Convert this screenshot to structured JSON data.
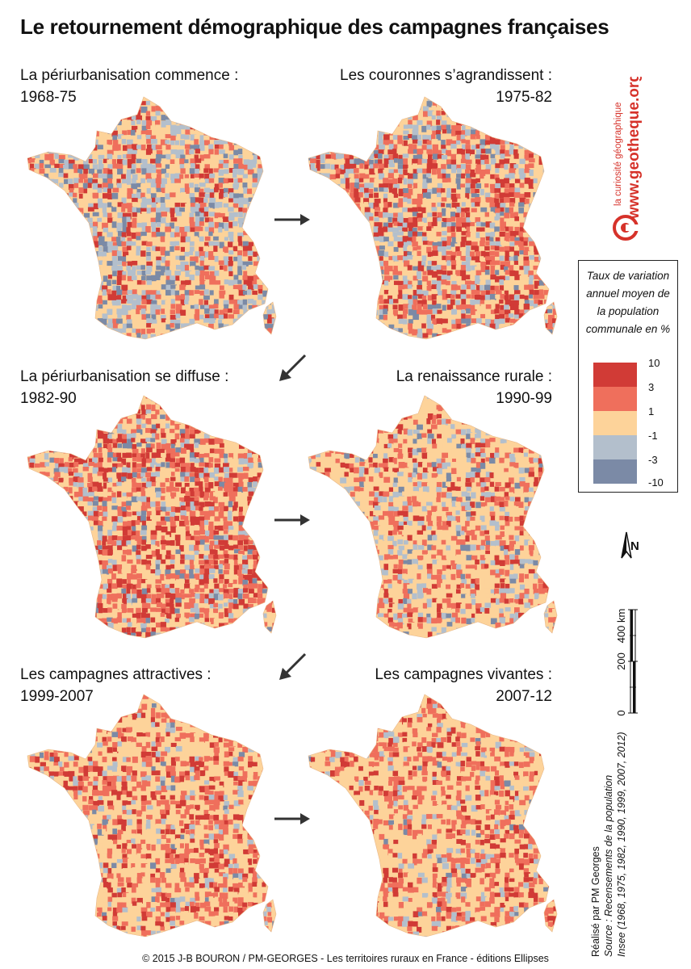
{
  "title": "Le retournement démographique des campagnes françaises",
  "panels": [
    {
      "label": "La périurbanisation commence :",
      "period": "1968-75",
      "palette": "p1"
    },
    {
      "label": "Les couronnes s’agrandissent :",
      "period": "1975-82",
      "palette": "p2"
    },
    {
      "label": "La périurbanisation se diffuse :",
      "period": "1982-90",
      "palette": "p3"
    },
    {
      "label": "La renaissance rurale :",
      "period": "1990-99",
      "palette": "p4"
    },
    {
      "label": "Les campagnes attractives :",
      "period": "1999-2007",
      "palette": "p5"
    },
    {
      "label": "Les campagnes vivantes :",
      "period": "2007-12",
      "palette": "p6"
    }
  ],
  "legend": {
    "title_lines": [
      "Taux de variation",
      "annuel moyen de",
      "la population",
      "communale en %"
    ],
    "breaks": [
      "10",
      "3",
      "1",
      "-1",
      "-3",
      "-10"
    ],
    "colors": [
      "#d13b36",
      "#ef6f5c",
      "#fdd39a",
      "#b3bfcc",
      "#7b8aa6"
    ]
  },
  "scale_bar": {
    "unit": "400 km",
    "mid": "200",
    "zero": "0"
  },
  "north_label": "N",
  "branding": {
    "line1": "la curiosité géographique",
    "line2": "www.geotheque.org"
  },
  "credits": {
    "line1": "Réalisé par PM Georges",
    "line2": "Source : Recensements de la population",
    "line3": "Insee (1968, 1975, 1982, 1990, 1999, 2007, 2012)"
  },
  "footer": "© 2015 J-B BOURON / PM-GEORGES - Les territoires ruraux en France - éditions Ellipses",
  "colors": {
    "accent_red": "#d6322a",
    "arrow": "#333333"
  }
}
